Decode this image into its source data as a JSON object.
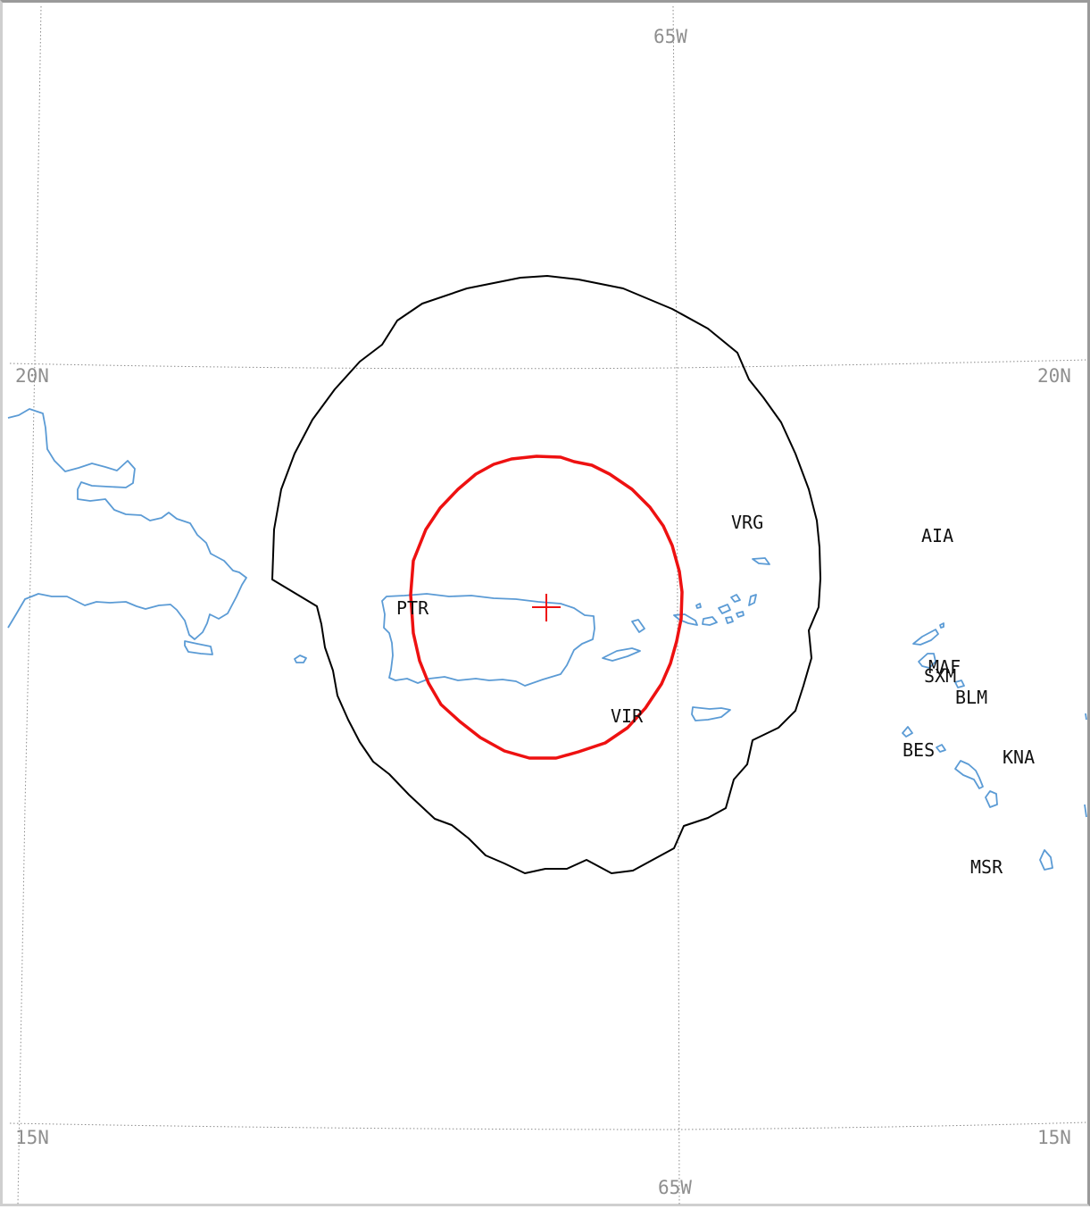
{
  "map": {
    "colors": {
      "coastline": "#5b9bd5",
      "outer_ring": "#000000",
      "inner_ring": "#ee1111",
      "center_marker": "#ee1111",
      "graticule": "#8a8a8a"
    },
    "graticule_labels": {
      "lon_top": "65W",
      "lon_bottom": "65W",
      "lat_20_left": "20N",
      "lat_20_right": "20N",
      "lat_15_left": "15N",
      "lat_15_right": "15N"
    },
    "country_labels": {
      "pr": "PTR",
      "vg": "VRG",
      "vi": "VIR",
      "ai": "AIA",
      "mf": "MAF",
      "sx": "SXM",
      "bl": "BLM",
      "bq": "BES",
      "kn": "KNA",
      "ms": "MSR"
    },
    "center_marker_icon": "crosshair-plus-icon"
  }
}
